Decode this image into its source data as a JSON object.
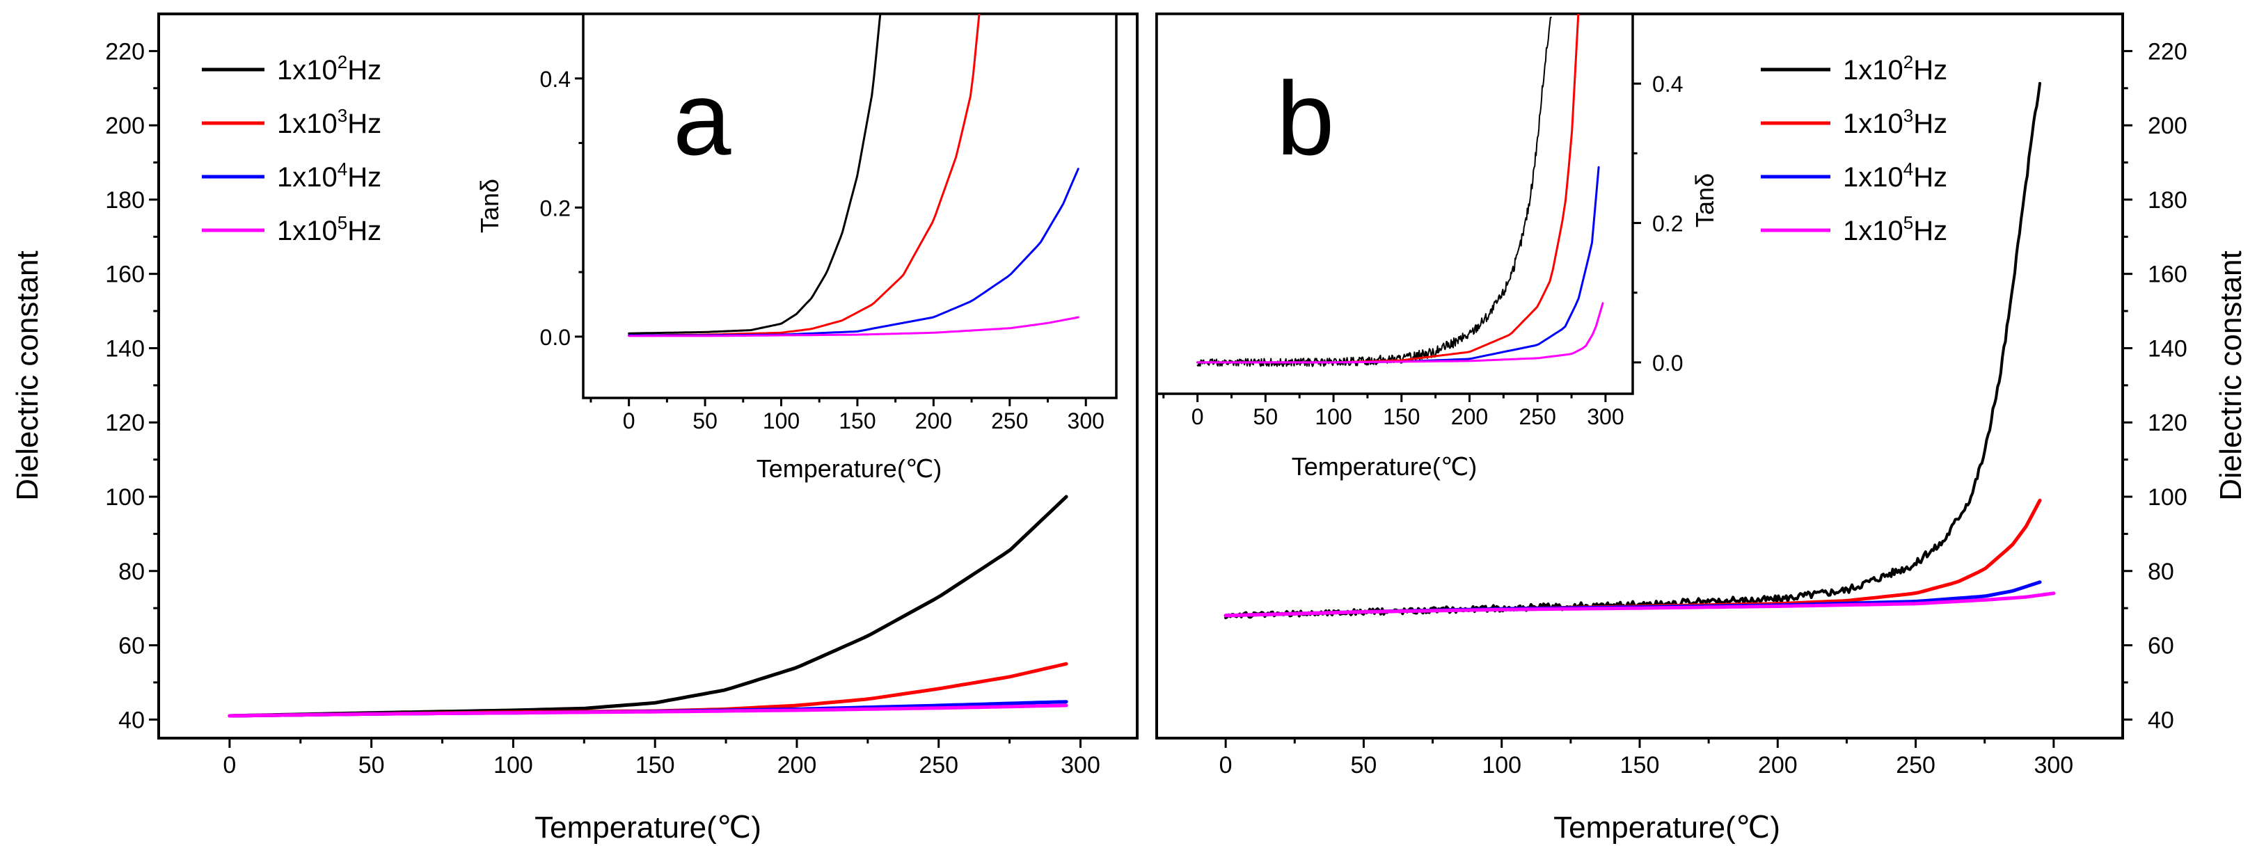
{
  "chart_data": [
    {
      "id": "a-main",
      "type": "line",
      "xlabel": "Temperature(℃)",
      "ylabel": "Dielectric constant",
      "xlim": [
        -25,
        320
      ],
      "ylim": [
        35,
        230
      ],
      "xticks": [
        0,
        50,
        100,
        150,
        200,
        250,
        300
      ],
      "yticks": [
        40,
        60,
        80,
        100,
        120,
        140,
        160,
        180,
        200,
        220
      ],
      "legend": {
        "placement": "top-left",
        "entries": [
          {
            "prefix": "1x10",
            "exp": "2",
            "suffix": "Hz"
          },
          {
            "prefix": "1x10",
            "exp": "3",
            "suffix": "Hz"
          },
          {
            "prefix": "1x10",
            "exp": "4",
            "suffix": "Hz"
          },
          {
            "prefix": "1x10",
            "exp": "5",
            "suffix": "Hz"
          }
        ]
      },
      "series": [
        {
          "name": "1x10^2Hz",
          "color": "#000000",
          "x": [
            0,
            50,
            100,
            125,
            150,
            175,
            200,
            225,
            250,
            275,
            295
          ],
          "y": [
            41,
            41.8,
            42.5,
            43,
            44.5,
            48,
            54,
            62.5,
            73,
            85.5,
            100
          ]
        },
        {
          "name": "1x10^3Hz",
          "color": "#ff0000",
          "x": [
            0,
            50,
            100,
            150,
            175,
            200,
            225,
            250,
            275,
            295
          ],
          "y": [
            41,
            41.5,
            42,
            42.3,
            42.8,
            43.8,
            45.5,
            48.3,
            51.5,
            55
          ]
        },
        {
          "name": "1x10^4Hz",
          "color": "#0000ff",
          "x": [
            0,
            50,
            100,
            150,
            200,
            250,
            295
          ],
          "y": [
            41,
            41.5,
            41.8,
            42.2,
            42.8,
            43.8,
            44.8
          ]
        },
        {
          "name": "1x10^5Hz",
          "color": "#ff00ff",
          "x": [
            0,
            50,
            100,
            150,
            200,
            250,
            295
          ],
          "y": [
            41,
            41.5,
            41.8,
            42.1,
            42.5,
            43.1,
            43.8
          ]
        }
      ]
    },
    {
      "id": "a-inset",
      "type": "line",
      "panel_label": "a",
      "xlabel": "Temperature(℃)",
      "ylabel": "Tanδ",
      "xlim": [
        -30,
        320
      ],
      "ylim": [
        -0.095,
        0.5
      ],
      "xticks": [
        0,
        50,
        100,
        150,
        200,
        250,
        300
      ],
      "yticks": [
        0.0,
        0.2,
        0.4
      ],
      "ytick_labels": [
        "0.0",
        "0.2",
        "0.4"
      ],
      "series": [
        {
          "name": "1x10^2Hz",
          "color": "#000000",
          "x": [
            0,
            50,
            80,
            100,
            110,
            120,
            130,
            140,
            150,
            160,
            165
          ],
          "y": [
            0.005,
            0.007,
            0.01,
            0.02,
            0.035,
            0.06,
            0.1,
            0.16,
            0.25,
            0.38,
            0.5
          ]
        },
        {
          "name": "1x10^3Hz",
          "color": "#ff0000",
          "x": [
            0,
            50,
            100,
            120,
            140,
            160,
            180,
            200,
            215,
            225,
            230
          ],
          "y": [
            0.002,
            0.003,
            0.006,
            0.012,
            0.025,
            0.05,
            0.095,
            0.18,
            0.28,
            0.38,
            0.5
          ]
        },
        {
          "name": "1x10^4Hz",
          "color": "#0000ff",
          "x": [
            0,
            50,
            100,
            150,
            200,
            225,
            250,
            270,
            285,
            295
          ],
          "y": [
            0.002,
            0.002,
            0.003,
            0.008,
            0.03,
            0.055,
            0.095,
            0.145,
            0.205,
            0.26
          ]
        },
        {
          "name": "1x10^5Hz",
          "color": "#ff00ff",
          "x": [
            0,
            50,
            100,
            150,
            200,
            250,
            275,
            295
          ],
          "y": [
            0.001,
            0.001,
            0.002,
            0.003,
            0.006,
            0.013,
            0.021,
            0.03
          ]
        }
      ]
    },
    {
      "id": "b-main",
      "type": "line",
      "xlabel": "Temperature(℃)",
      "ylabel": "Dielectric constant",
      "xlim": [
        -25,
        325
      ],
      "ylim": [
        35,
        230
      ],
      "xticks": [
        0,
        50,
        100,
        150,
        200,
        250,
        300
      ],
      "yticks": [
        40,
        60,
        80,
        100,
        120,
        140,
        160,
        180,
        200,
        220
      ],
      "legend": {
        "placement": "top-right",
        "entries": [
          {
            "prefix": "1x10",
            "exp": "2",
            "suffix": "Hz"
          },
          {
            "prefix": "1x10",
            "exp": "3",
            "suffix": "Hz"
          },
          {
            "prefix": "1x10",
            "exp": "4",
            "suffix": "Hz"
          },
          {
            "prefix": "1x10",
            "exp": "5",
            "suffix": "Hz"
          }
        ]
      },
      "series": [
        {
          "name": "1x10^2Hz",
          "color": "#000000",
          "noise": 0.7,
          "x": [
            0,
            50,
            100,
            150,
            200,
            225,
            250,
            260,
            270,
            275,
            280,
            285,
            290,
            295
          ],
          "y": [
            68,
            69,
            70,
            71,
            72.5,
            75,
            82,
            88,
            100,
            112,
            130,
            155,
            185,
            212
          ]
        },
        {
          "name": "1x10^3Hz",
          "color": "#ff0000",
          "x": [
            0,
            50,
            100,
            150,
            200,
            225,
            250,
            265,
            275,
            285,
            290,
            295
          ],
          "y": [
            68,
            69,
            69.8,
            70.5,
            71.2,
            72,
            74,
            77,
            80.5,
            87,
            92,
            99
          ]
        },
        {
          "name": "1x10^4Hz",
          "color": "#0000ff",
          "x": [
            0,
            50,
            100,
            150,
            200,
            250,
            275,
            285,
            295
          ],
          "y": [
            68,
            69,
            69.8,
            70.3,
            70.8,
            71.8,
            73.2,
            74.6,
            77
          ]
        },
        {
          "name": "1x10^5Hz",
          "color": "#ff00ff",
          "x": [
            0,
            50,
            100,
            150,
            200,
            250,
            275,
            290,
            300
          ],
          "y": [
            68,
            69,
            69.6,
            70,
            70.5,
            71.2,
            72.2,
            73,
            74
          ]
        }
      ]
    },
    {
      "id": "b-inset",
      "type": "line",
      "panel_label": "b",
      "xlabel": "Temperature(℃)",
      "ylabel": "Tanδ",
      "xlim": [
        -30,
        320
      ],
      "ylim": [
        -0.045,
        0.5
      ],
      "xticks": [
        0,
        50,
        100,
        150,
        200,
        250,
        300
      ],
      "yticks": [
        0.0,
        0.2,
        0.4
      ],
      "ytick_labels": [
        "0.0",
        "0.2",
        "0.4"
      ],
      "series": [
        {
          "name": "1x10^2Hz",
          "color": "#000000",
          "noise": 0.005,
          "x": [
            0,
            50,
            100,
            150,
            175,
            200,
            215,
            225,
            235,
            240,
            245,
            250,
            255,
            260
          ],
          "y": [
            0.0,
            0.0,
            0.0,
            0.005,
            0.015,
            0.04,
            0.07,
            0.1,
            0.15,
            0.19,
            0.24,
            0.32,
            0.42,
            0.5
          ]
        },
        {
          "name": "1x10^3Hz",
          "color": "#ff0000",
          "x": [
            0,
            50,
            100,
            150,
            200,
            230,
            250,
            260,
            270,
            275,
            280
          ],
          "y": [
            0.0,
            0.0,
            0.0,
            0.003,
            0.015,
            0.04,
            0.08,
            0.12,
            0.22,
            0.32,
            0.5
          ]
        },
        {
          "name": "1x10^4Hz",
          "color": "#0000ff",
          "x": [
            0,
            100,
            150,
            200,
            250,
            270,
            280,
            290,
            295
          ],
          "y": [
            0.0,
            0.0,
            0.001,
            0.005,
            0.025,
            0.05,
            0.09,
            0.17,
            0.28
          ]
        },
        {
          "name": "1x10^5Hz",
          "color": "#ff00ff",
          "x": [
            0,
            100,
            200,
            250,
            275,
            285,
            292,
            298
          ],
          "y": [
            0.0,
            0.0,
            0.002,
            0.006,
            0.012,
            0.022,
            0.045,
            0.085
          ]
        }
      ]
    }
  ]
}
